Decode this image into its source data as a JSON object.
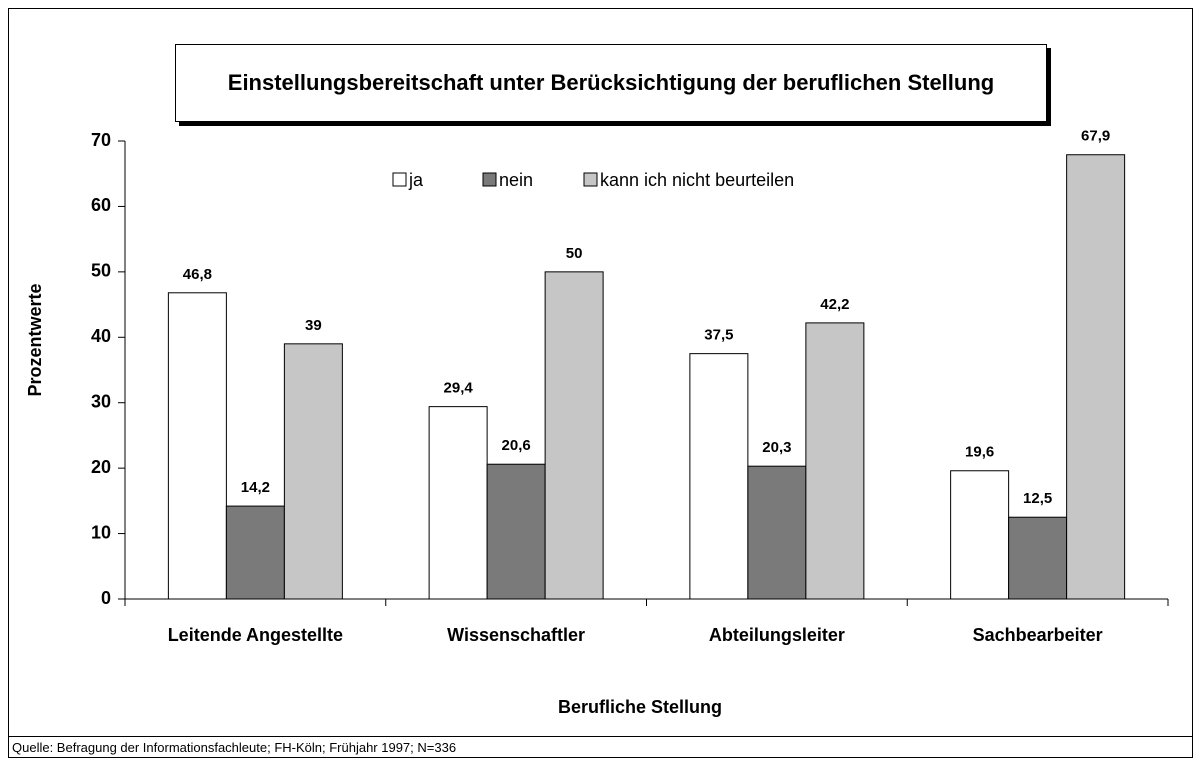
{
  "chart_data": {
    "type": "bar",
    "title": "Einstellungsbereitschaft unter Berücksichtigung der beruflichen Stellung",
    "categories": [
      "Leitende Angestellte",
      "Wissenschaftler",
      "Abteilungsleiter",
      "Sachbearbeiter"
    ],
    "series": [
      {
        "name": "ja",
        "color": "#ffffff",
        "values": [
          46.8,
          29.4,
          37.5,
          19.6
        ],
        "value_labels": [
          "46,8",
          "29,4",
          "37,5",
          "19,6"
        ]
      },
      {
        "name": "nein",
        "color": "#7a7a7a",
        "values": [
          14.2,
          20.6,
          20.3,
          12.5
        ],
        "value_labels": [
          "14,2",
          "20,6",
          "20,3",
          "12,5"
        ]
      },
      {
        "name": "kann ich nicht beurteilen",
        "color": "#c6c6c6",
        "values": [
          39,
          50,
          42.2,
          67.9
        ],
        "value_labels": [
          "39",
          "50",
          "42,2",
          "67,9"
        ]
      }
    ],
    "ylabel": "Prozentwerte",
    "xlabel": "Berufliche Stellung",
    "ylim": [
      0,
      70
    ],
    "yticks": [
      0,
      10,
      20,
      30,
      40,
      50,
      60,
      70
    ],
    "legend": "top",
    "source": "Quelle: Befragung der Informationsfachleute; FH-Köln; Frühjahr 1997; N=336"
  }
}
